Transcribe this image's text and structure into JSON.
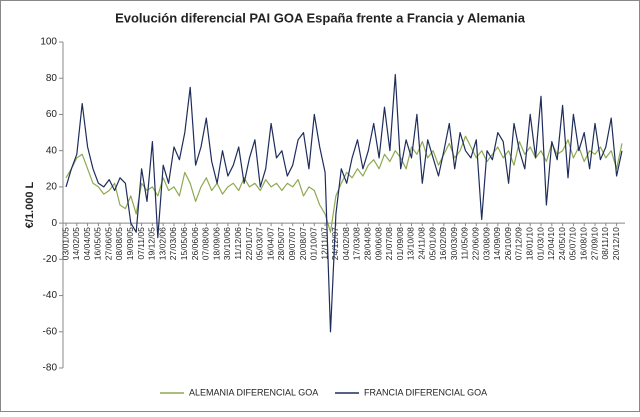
{
  "chart_data": {
    "type": "line",
    "title": "Evolución diferencial PAI GOA España frente a Francia y Alemania",
    "y_label": "€/1.000 L",
    "categories": [
      "03/01/05",
      null,
      "14/02/05",
      null,
      "04/04/05",
      null,
      "16/05/05",
      null,
      "27/06/05",
      null,
      "08/08/05",
      null,
      "19/09/05",
      null,
      "07/11/05",
      null,
      "19/12/05",
      null,
      "13/02/06",
      null,
      "27/03/06",
      null,
      "15/05/06",
      null,
      "26/06/06",
      null,
      "07/08/06",
      null,
      "18/09/06",
      null,
      "30/10/06",
      null,
      "11/12/06",
      null,
      "22/01/07",
      null,
      "05/03/07",
      null,
      "16/04/07",
      null,
      "28/05/07",
      null,
      "09/07/07",
      null,
      "20/08/07",
      null,
      "01/10/07",
      null,
      "12/11/07",
      null,
      "24/12/07",
      null,
      "04/02/08",
      null,
      "17/03/08",
      null,
      "28/04/08",
      null,
      "09/06/08",
      null,
      "21/07/08",
      null,
      "01/09/08",
      null,
      "13/10/08",
      null,
      "24/11/08",
      null,
      "05/01/09",
      null,
      "16/02/09",
      null,
      "30/03/09",
      null,
      "11/05/09",
      null,
      "22/06/09",
      null,
      "03/08/09",
      null,
      "14/09/09",
      null,
      "26/10/09",
      null,
      "07/12/09",
      null,
      "18/01/10",
      null,
      "01/03/10",
      null,
      "12/04/10",
      null,
      "24/05/10",
      null,
      "05/07/10",
      null,
      "16/08/10",
      null,
      "27/09/10",
      null,
      "08/11/10",
      null,
      "20/12/10",
      null
    ],
    "series": [
      {
        "name": "ALEMANIA DIFERENCIAL GOA",
        "color": "#8eaa52",
        "values": [
          25,
          30,
          36,
          38,
          30,
          22,
          20,
          16,
          18,
          22,
          10,
          8,
          15,
          5,
          22,
          18,
          20,
          15,
          25,
          18,
          20,
          15,
          28,
          22,
          12,
          20,
          25,
          18,
          22,
          16,
          20,
          22,
          18,
          25,
          20,
          22,
          18,
          24,
          20,
          22,
          18,
          22,
          20,
          24,
          15,
          20,
          18,
          10,
          5,
          -5,
          15,
          22,
          28,
          25,
          30,
          26,
          32,
          35,
          30,
          38,
          34,
          40,
          36,
          30,
          42,
          38,
          45,
          36,
          40,
          32,
          38,
          44,
          36,
          40,
          48,
          42,
          36,
          40,
          34,
          38,
          42,
          36,
          40,
          32,
          45,
          38,
          42,
          36,
          40,
          34,
          44,
          38,
          40,
          46,
          36,
          42,
          34,
          40,
          38,
          42,
          36,
          40,
          30,
          44
        ]
      },
      {
        "name": "FRANCIA DIFERENCIAL GOA",
        "color": "#1f2d5c",
        "values": [
          20,
          30,
          38,
          66,
          42,
          30,
          22,
          20,
          24,
          18,
          25,
          22,
          0,
          -5,
          30,
          12,
          45,
          -8,
          32,
          22,
          42,
          35,
          50,
          75,
          32,
          42,
          58,
          34,
          22,
          40,
          26,
          32,
          42,
          22,
          36,
          46,
          20,
          30,
          55,
          36,
          40,
          26,
          32,
          46,
          50,
          30,
          60,
          42,
          28,
          -60,
          5,
          30,
          22,
          36,
          46,
          30,
          40,
          55,
          36,
          64,
          40,
          82,
          30,
          46,
          36,
          60,
          22,
          46,
          36,
          26,
          40,
          55,
          30,
          50,
          40,
          36,
          46,
          2,
          40,
          35,
          50,
          45,
          22,
          55,
          40,
          30,
          60,
          36,
          70,
          10,
          45,
          35,
          65,
          25,
          60,
          40,
          50,
          30,
          55,
          35,
          42,
          58,
          26,
          40
        ]
      }
    ],
    "ylim": [
      -80,
      100
    ],
    "yticks": [
      -80,
      -60,
      -40,
      -20,
      0,
      20,
      40,
      60,
      80,
      100
    ],
    "grid": false,
    "legend": "bottom"
  }
}
